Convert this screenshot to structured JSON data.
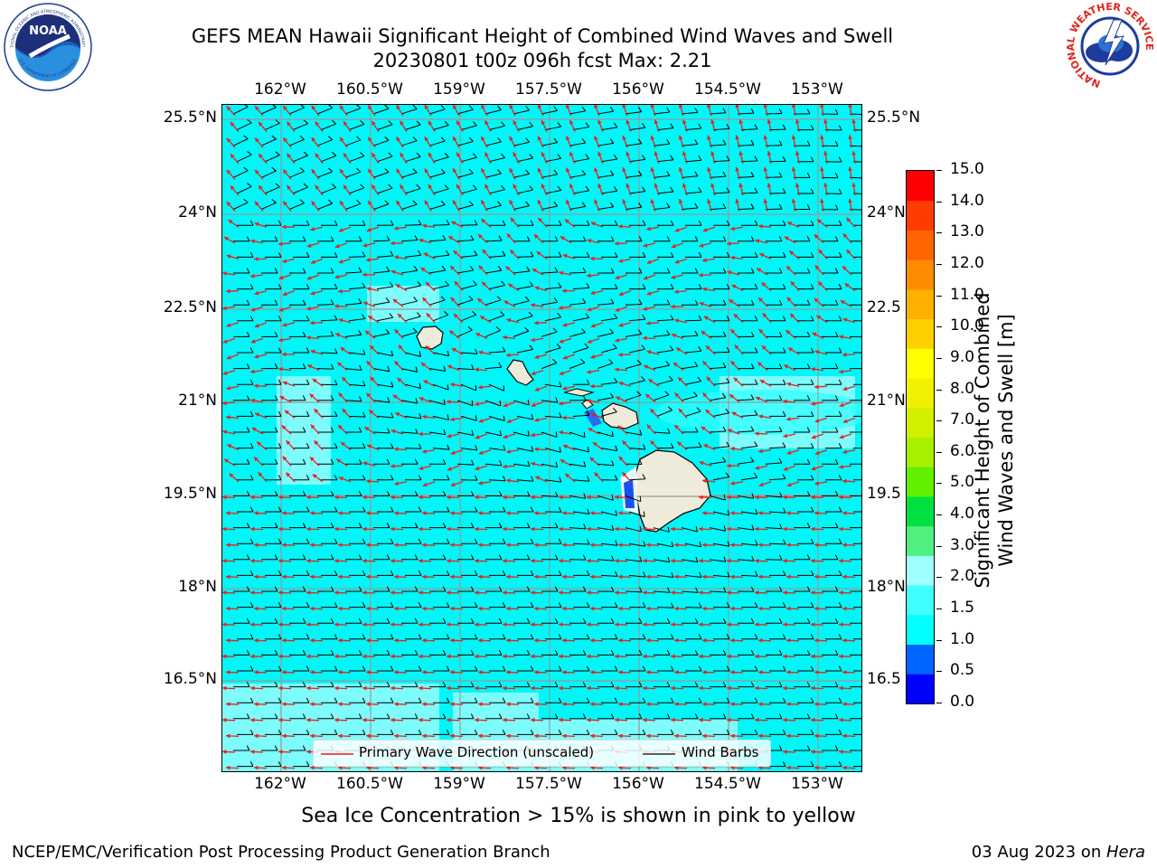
{
  "header": {
    "title_line1": "GEFS MEAN Hawaii Significant Height of Combined Wind Waves and Swell",
    "title_line2": "20230801 t00z 096h fcst   Max: 2.21"
  },
  "logos": {
    "noaa_text": "NOAA",
    "noaa_ring_top": "NATIONAL OCEANIC AND ATMOSPHERIC ADMINISTRATION",
    "noaa_ring_bottom": "U.S. DEPARTMENT OF COMMERCE",
    "nws_ring": "NATIONAL WEATHER SERVICE"
  },
  "map": {
    "lon_labels": [
      "162°W",
      "160.5°W",
      "159°W",
      "157.5°W",
      "156°W",
      "154.5°W",
      "153°W"
    ],
    "lat_labels_left": [
      "25.5°N",
      "24°N",
      "22.5°N",
      "21°N",
      "19.5°N",
      "18°N",
      "16.5°N"
    ],
    "lat_labels_right": [
      "25.5°N",
      "24°N",
      "22.5",
      "21°N",
      "19.5",
      "18°N",
      "16.5"
    ],
    "ocean_color": "#00f6f7",
    "land_color": "#efebda",
    "wave_arrow_color": "#e8201c",
    "barb_color": "#000000"
  },
  "legend": {
    "wave_label": "Primary Wave Direction (unscaled)",
    "barb_label": "Wind Barbs"
  },
  "colorbar": {
    "title_line1": "Significant Height of Combined",
    "title_line2": "Wind Waves and Swell [m]",
    "ticks": [
      "15.0",
      "14.0",
      "13.0",
      "12.0",
      "11.0",
      "10.0",
      "9.0",
      "8.0",
      "7.0",
      "6.0",
      "5.0",
      "4.0",
      "3.0",
      "2.0",
      "1.5",
      "1.0",
      "0.5",
      "0.0"
    ],
    "colors_bottom_to_top": [
      "#0000ff",
      "#0064ff",
      "#00ffff",
      "#40ffff",
      "#a0ffff",
      "#50f080",
      "#00e040",
      "#60f000",
      "#a8f000",
      "#d0f000",
      "#f0f000",
      "#ffff00",
      "#ffd000",
      "#ffb000",
      "#ff8c00",
      "#ff6400",
      "#ff3c00",
      "#ff0000"
    ]
  },
  "footer": {
    "note": "Sea Ice Concentration > 15% is shown in pink to yellow",
    "left": "NCEP/EMC/Verification Post Processing Product Generation Branch",
    "right_date": "03 Aug 2023 on ",
    "right_host": "Hera"
  }
}
